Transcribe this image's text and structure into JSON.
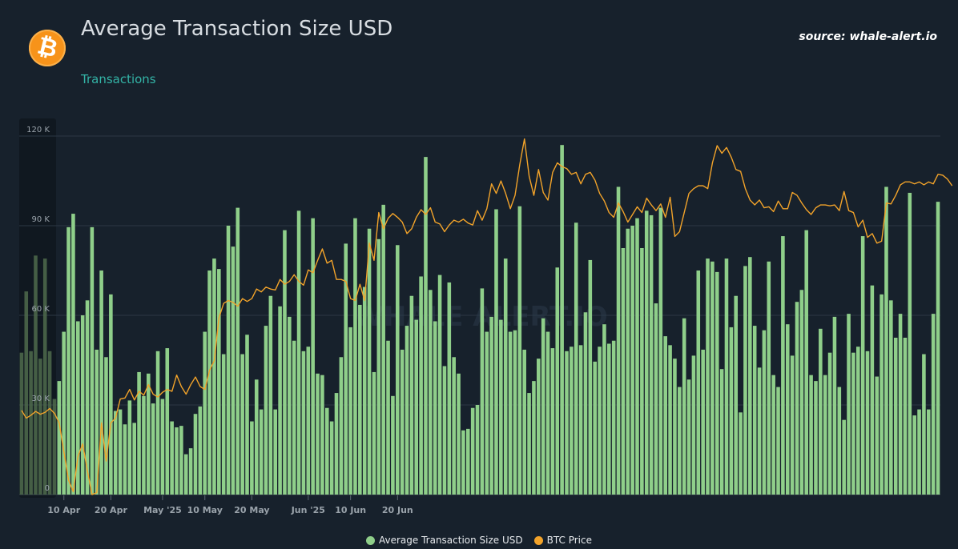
{
  "header": {
    "title": "Average Transaction Size USD",
    "subtitle": "Transactions",
    "source": "source: whale-alert.io",
    "logo_symbol": "₿",
    "watermark": "WHALE ALERT.IO"
  },
  "colors": {
    "background": "#17212c",
    "bar": "#8fcf8a",
    "line": "#f2a32a",
    "subtitle": "#33b3a6",
    "logo": "#f7931a"
  },
  "chart_data": {
    "type": "bar",
    "title": "Average Transaction Size USD",
    "ylim": [
      0,
      120000
    ],
    "y_ticks": [
      {
        "value": 0,
        "label": "0"
      },
      {
        "value": 30000,
        "label": "30 K"
      },
      {
        "value": 60000,
        "label": "60 K"
      },
      {
        "value": 90000,
        "label": "90 K"
      },
      {
        "value": 120000,
        "label": "120 K"
      }
    ],
    "grid": true,
    "legend_position": "bottom-center",
    "x_start": "2025-04-01",
    "x_ticks": [
      {
        "date": "2025-04-10",
        "label": "10 Apr"
      },
      {
        "date": "2025-04-20",
        "label": "20 Apr"
      },
      {
        "date": "2025-05-01",
        "label": "May '25"
      },
      {
        "date": "2025-05-10",
        "label": "10 May"
      },
      {
        "date": "2025-05-20",
        "label": "20 May"
      },
      {
        "date": "2025-06-01",
        "label": "Jun '25"
      },
      {
        "date": "2025-06-10",
        "label": "10 Jun"
      },
      {
        "date": "2025-06-20",
        "label": "20 Jun"
      }
    ],
    "series": [
      {
        "name": "Average Transaction Size USD",
        "type": "bar",
        "values": [
          47500,
          68000,
          48000,
          80000,
          45500,
          79000,
          48000,
          32000,
          38000,
          54500,
          89500,
          94000,
          58000,
          60000,
          65000,
          89500,
          48500,
          75000,
          46000,
          67000,
          28000,
          28500,
          23500,
          31500,
          24000,
          41000,
          33000,
          40500,
          30500,
          48000,
          32000,
          49000,
          24500,
          22500,
          23000,
          13500,
          15500,
          27000,
          29500,
          54500,
          75000,
          79000,
          75500,
          47000,
          90000,
          83000,
          96000,
          47000,
          53500,
          24500,
          38500,
          28500,
          56500,
          66500,
          28500,
          63000,
          88500,
          59500,
          51500,
          95000,
          48000,
          49500,
          92500,
          40500,
          40000,
          29000,
          24500,
          34000,
          46000,
          84000,
          56000,
          92500,
          63500,
          69500,
          89000,
          41000,
          85500,
          97000,
          51500,
          33000,
          83500,
          48500,
          56500,
          66500,
          58500,
          73000,
          113000,
          68500,
          58000,
          73500,
          43000,
          71000,
          46000,
          40500,
          21500,
          22000,
          29000,
          30000,
          69000,
          54500,
          59500,
          95500,
          58500,
          79000,
          54500,
          55000,
          96500,
          48500,
          34000,
          38000,
          45500,
          59000,
          54500,
          49000,
          76000,
          117000,
          48000,
          49500,
          91000,
          50000,
          61000,
          78500,
          44500,
          49500,
          57000,
          50500,
          51500,
          103000,
          82500,
          89000,
          90000,
          92500,
          82500,
          95000,
          93500,
          64000,
          96000,
          53000,
          50000,
          45500,
          36000,
          59000,
          38500,
          46500,
          75000,
          48500,
          79000,
          78000,
          74500,
          42000,
          79000,
          56000,
          66500,
          27500,
          76500,
          79500,
          56500,
          42500,
          55000,
          78000,
          40000,
          36000,
          86500,
          57000,
          46500,
          64500,
          68500,
          88500,
          40000,
          38000,
          55500,
          40000,
          47500,
          59500,
          36000,
          25000,
          60500,
          47500,
          49500,
          86500,
          48000,
          70000,
          39500,
          67000,
          103000,
          65000,
          52500,
          60500,
          52500,
          101000,
          26500,
          28500,
          47000,
          28500,
          60500,
          98000
        ],
        "partial_first": 8
      },
      {
        "name": "BTC Price",
        "type": "line",
        "ylim": [
          74500,
          112000
        ],
        "values": [
          83300,
          82500,
          82800,
          83200,
          82900,
          83100,
          83500,
          83000,
          82000,
          79000,
          76000,
          74800,
          78500,
          79800,
          77000,
          74500,
          74700,
          82000,
          78000,
          82000,
          82500,
          84500,
          84600,
          85500,
          84400,
          85300,
          84900,
          86000,
          85000,
          84700,
          85200,
          85500,
          85300,
          87000,
          85800,
          85000,
          86000,
          86800,
          85800,
          85500,
          87500,
          88500,
          93000,
          94500,
          94800,
          94600,
          94200,
          95000,
          94700,
          95000,
          96000,
          95700,
          96200,
          96000,
          95900,
          97000,
          96500,
          96800,
          97500,
          96800,
          96400,
          98000,
          97700,
          99000,
          100200,
          98700,
          99000,
          97000,
          97000,
          96800,
          95000,
          94800,
          96500,
          94800,
          100800,
          99000,
          104000,
          102300,
          103400,
          103900,
          103500,
          103000,
          101800,
          102300,
          103500,
          104300,
          103800,
          104500,
          103000,
          102800,
          102000,
          102700,
          103200,
          103000,
          103300,
          102900,
          102700,
          104200,
          103200,
          104400,
          107000,
          106000,
          107300,
          106000,
          104400,
          105800,
          109000,
          111700,
          107800,
          105800,
          108500,
          106100,
          105300,
          108200,
          109200,
          108800,
          108600,
          108000,
          108200,
          107000,
          108000,
          108200,
          107400,
          106000,
          105200,
          104000,
          103500,
          105000,
          104100,
          103000,
          103800,
          104600,
          104000,
          105500,
          104800,
          104200,
          104900,
          103500,
          105600,
          101500,
          102000,
          104000,
          106000,
          106500,
          106800,
          106800,
          106500,
          109200,
          111000,
          110200,
          110800,
          109800,
          108500,
          108300,
          106500,
          105300,
          104800,
          105300,
          104500,
          104600,
          104100,
          105200,
          104400,
          104400,
          106100,
          105800,
          105000,
          104300,
          103800,
          104500,
          104800,
          104800,
          104700,
          104800,
          104200,
          106200,
          104200,
          104000,
          102500,
          103200,
          101400,
          101800,
          100800,
          101000,
          105000,
          104900,
          105800,
          106900,
          107200,
          107200,
          107000,
          107200,
          106900,
          107200,
          107000,
          108000,
          107900,
          107500,
          106800
        ]
      }
    ]
  }
}
